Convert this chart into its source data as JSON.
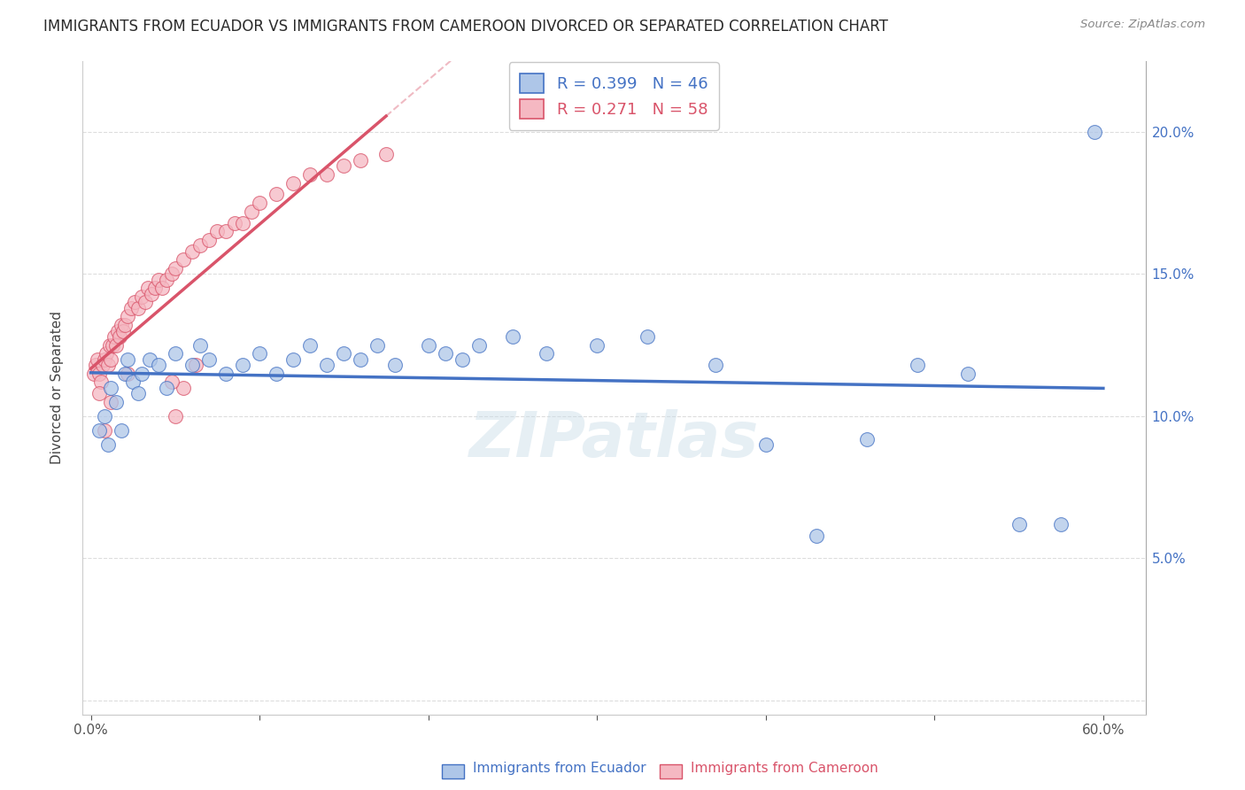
{
  "title": "IMMIGRANTS FROM ECUADOR VS IMMIGRANTS FROM CAMEROON DIVORCED OR SEPARATED CORRELATION CHART",
  "source": "Source: ZipAtlas.com",
  "ylabel": "Divorced or Separated",
  "xlabel_ecuador": "Immigrants from Ecuador",
  "xlabel_cameroon": "Immigrants from Cameroon",
  "xlim": [
    -0.005,
    0.625
  ],
  "ylim": [
    -0.005,
    0.225
  ],
  "xticks": [
    0.0,
    0.1,
    0.2,
    0.3,
    0.4,
    0.5,
    0.6
  ],
  "xtick_labels": [
    "0.0%",
    "",
    "",
    "",
    "",
    "",
    "60.0%"
  ],
  "yticks_right": [
    0.0,
    0.05,
    0.1,
    0.15,
    0.2
  ],
  "ytick_labels_right": [
    "",
    "5.0%",
    "10.0%",
    "15.0%",
    "20.0%"
  ],
  "ecuador_R": 0.399,
  "ecuador_N": 46,
  "cameroon_R": 0.271,
  "cameroon_N": 58,
  "ecuador_color": "#aec6e8",
  "ecuador_line_color": "#4472c4",
  "cameroon_color": "#f5b8c2",
  "cameroon_line_color": "#d9546a",
  "ecuador_scatter_x": [
    0.005,
    0.008,
    0.01,
    0.012,
    0.015,
    0.018,
    0.02,
    0.022,
    0.025,
    0.028,
    0.03,
    0.035,
    0.04,
    0.045,
    0.05,
    0.06,
    0.065,
    0.07,
    0.08,
    0.09,
    0.1,
    0.11,
    0.12,
    0.13,
    0.14,
    0.15,
    0.16,
    0.17,
    0.18,
    0.2,
    0.21,
    0.22,
    0.23,
    0.25,
    0.27,
    0.3,
    0.33,
    0.37,
    0.4,
    0.43,
    0.46,
    0.49,
    0.52,
    0.55,
    0.575,
    0.595
  ],
  "ecuador_scatter_y": [
    0.095,
    0.1,
    0.09,
    0.11,
    0.105,
    0.095,
    0.115,
    0.12,
    0.112,
    0.108,
    0.115,
    0.12,
    0.118,
    0.11,
    0.122,
    0.118,
    0.125,
    0.12,
    0.115,
    0.118,
    0.122,
    0.115,
    0.12,
    0.125,
    0.118,
    0.122,
    0.12,
    0.125,
    0.118,
    0.125,
    0.122,
    0.12,
    0.125,
    0.128,
    0.122,
    0.125,
    0.128,
    0.118,
    0.09,
    0.058,
    0.092,
    0.118,
    0.115,
    0.062,
    0.062,
    0.2
  ],
  "cameroon_scatter_x": [
    0.002,
    0.003,
    0.004,
    0.005,
    0.006,
    0.007,
    0.008,
    0.009,
    0.01,
    0.011,
    0.012,
    0.013,
    0.014,
    0.015,
    0.016,
    0.017,
    0.018,
    0.019,
    0.02,
    0.022,
    0.024,
    0.026,
    0.028,
    0.03,
    0.032,
    0.034,
    0.036,
    0.038,
    0.04,
    0.042,
    0.045,
    0.048,
    0.05,
    0.055,
    0.06,
    0.065,
    0.07,
    0.075,
    0.08,
    0.085,
    0.09,
    0.095,
    0.1,
    0.11,
    0.12,
    0.13,
    0.14,
    0.15,
    0.16,
    0.175,
    0.005,
    0.008,
    0.012,
    0.022,
    0.05,
    0.062,
    0.055,
    0.048
  ],
  "cameroon_scatter_y": [
    0.115,
    0.118,
    0.12,
    0.115,
    0.112,
    0.118,
    0.12,
    0.122,
    0.118,
    0.125,
    0.12,
    0.125,
    0.128,
    0.125,
    0.13,
    0.128,
    0.132,
    0.13,
    0.132,
    0.135,
    0.138,
    0.14,
    0.138,
    0.142,
    0.14,
    0.145,
    0.143,
    0.145,
    0.148,
    0.145,
    0.148,
    0.15,
    0.152,
    0.155,
    0.158,
    0.16,
    0.162,
    0.165,
    0.165,
    0.168,
    0.168,
    0.172,
    0.175,
    0.178,
    0.182,
    0.185,
    0.185,
    0.188,
    0.19,
    0.192,
    0.108,
    0.095,
    0.105,
    0.115,
    0.1,
    0.118,
    0.11,
    0.112
  ],
  "background_color": "#ffffff",
  "grid_color": "#dddddd",
  "watermark_color": "#c8dce8",
  "cam_line_solid_end": 0.175,
  "cam_line_dash_end": 0.6,
  "eq_line_start": 0.0,
  "eq_line_end": 0.6
}
